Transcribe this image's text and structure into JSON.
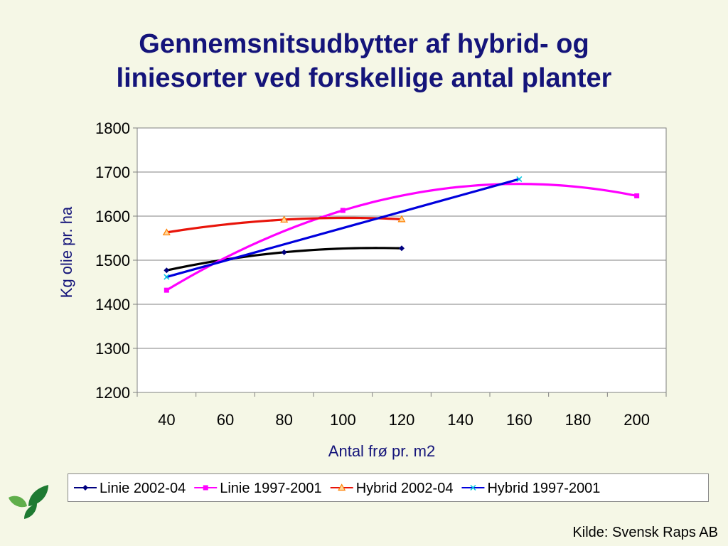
{
  "title_lines": [
    "Gennemsnitsudbytter af hybrid- og",
    "liniesorter ved forskellige antal planter"
  ],
  "source": "Kilde: Svensk Raps AB",
  "logo": {
    "icon": "leaf-logo-icon",
    "colors": [
      "#1e7a32",
      "#5fae4a"
    ]
  },
  "chart_data": {
    "type": "line",
    "title": "",
    "xlabel": "Antal frø pr. m2",
    "ylabel": "Kg olie pr. ha",
    "xlim": [
      30,
      210
    ],
    "ylim": [
      1200,
      1800
    ],
    "xticks": [
      40,
      60,
      80,
      100,
      120,
      140,
      160,
      180,
      200
    ],
    "yticks": [
      1200,
      1300,
      1400,
      1500,
      1600,
      1700,
      1800
    ],
    "grid": "horizontal",
    "smooth": true,
    "legend_position": "bottom",
    "series": [
      {
        "name": "Linie 2002-04",
        "color": "#000000",
        "marker": "diamond",
        "marker_color": "#000080",
        "legend_color": "#000080",
        "x": [
          40,
          80,
          120
        ],
        "y": [
          1477,
          1518,
          1527
        ]
      },
      {
        "name": "Linie 1997-2001",
        "color": "#ff00ff",
        "marker": "square",
        "marker_color": "#ff00ff",
        "legend_color": "#ff00ff",
        "x": [
          40,
          100,
          200
        ],
        "y": [
          1432,
          1613,
          1646
        ]
      },
      {
        "name": "Hybrid  2002-04",
        "color": "#e8140a",
        "marker": "triangle",
        "marker_color": "#ff8000",
        "legend_color": "#e8140a",
        "x": [
          40,
          80,
          120
        ],
        "y": [
          1563,
          1592,
          1593
        ]
      },
      {
        "name": "Hybrid 1997-2001",
        "color": "#0000dd",
        "marker": "x",
        "marker_color": "#00c8e0",
        "legend_color": "#0000dd",
        "x": [
          40,
          160
        ],
        "y": [
          1462,
          1684
        ]
      }
    ]
  }
}
